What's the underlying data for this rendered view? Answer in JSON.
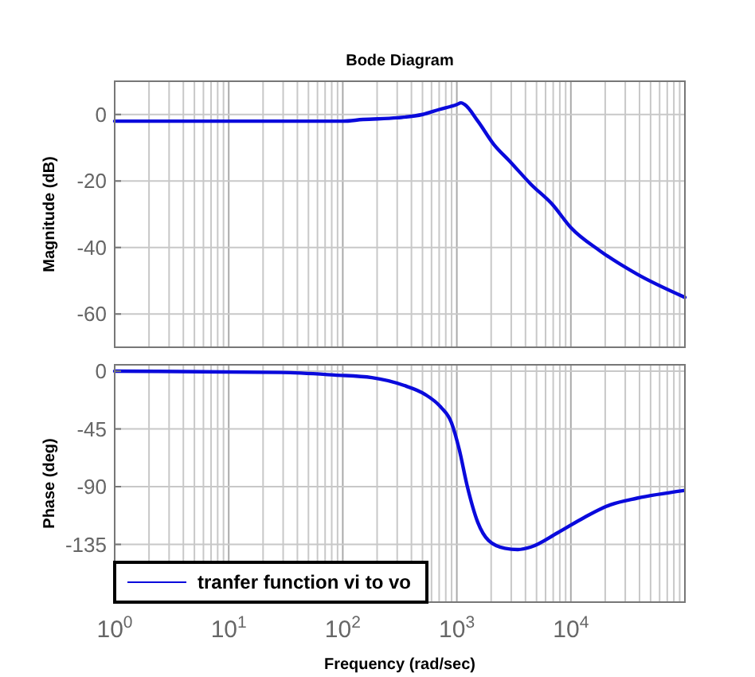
{
  "chart_data": [
    {
      "type": "line",
      "title": "Bode Diagram",
      "ylabel": "Magnitude (dB)",
      "log": "x",
      "grid": true,
      "legend": false,
      "tick_labels": "y",
      "xlim": [
        1,
        100000
      ],
      "xticks": [
        1,
        10,
        100,
        1000,
        10000
      ],
      "ylim": [
        -70,
        10
      ],
      "yticks": [
        -60,
        -40,
        -20,
        0
      ],
      "series": [
        {
          "color": "#0a0adc",
          "x": [
            1,
            100,
            150,
            300,
            500,
            700,
            1000,
            1090,
            1170,
            1530,
            2110,
            2900,
            4470,
            6870,
            10000,
            18000,
            38000,
            100000
          ],
          "values": [
            -2,
            -2,
            -1.5,
            -1,
            0,
            1.5,
            3,
            3.5,
            3,
            -2,
            -9,
            -14,
            -21,
            -27,
            -34,
            -41,
            -48,
            -55
          ]
        }
      ]
    },
    {
      "type": "line",
      "xlabel": "Frequency  (rad/sec)",
      "ylabel": "Phase (deg)",
      "log": "x",
      "grid": true,
      "legend": "bottom left",
      "xlim": [
        1,
        100000
      ],
      "xticks": [
        {
          "value": 1,
          "label": "10$^{0}$"
        },
        {
          "value": 10,
          "label": "10$^{1}$"
        },
        {
          "value": 100,
          "label": "10$^{2}$"
        },
        {
          "value": 1000,
          "label": "10$^{3}$"
        },
        {
          "value": 10000,
          "label": "10$^{4}$"
        }
      ],
      "ylim": [
        -180,
        5
      ],
      "yticks": [
        -135,
        -90,
        -45,
        0
      ],
      "series": [
        {
          "name": "tranfer function vi to vo",
          "color": "#0a0adc",
          "x": [
            1,
            29,
            85,
            180,
            342,
            525,
            724,
            896,
            1050,
            1230,
            1530,
            1900,
            2630,
            3430,
            4470,
            7640,
            13100,
            22400,
            38000,
            98000
          ],
          "values": [
            0,
            -1,
            -3,
            -5,
            -11,
            -18,
            -28,
            -40,
            -61,
            -89,
            -118,
            -132,
            -138,
            -139,
            -137,
            -126,
            -114,
            -104,
            -99,
            -93
          ]
        }
      ]
    }
  ]
}
